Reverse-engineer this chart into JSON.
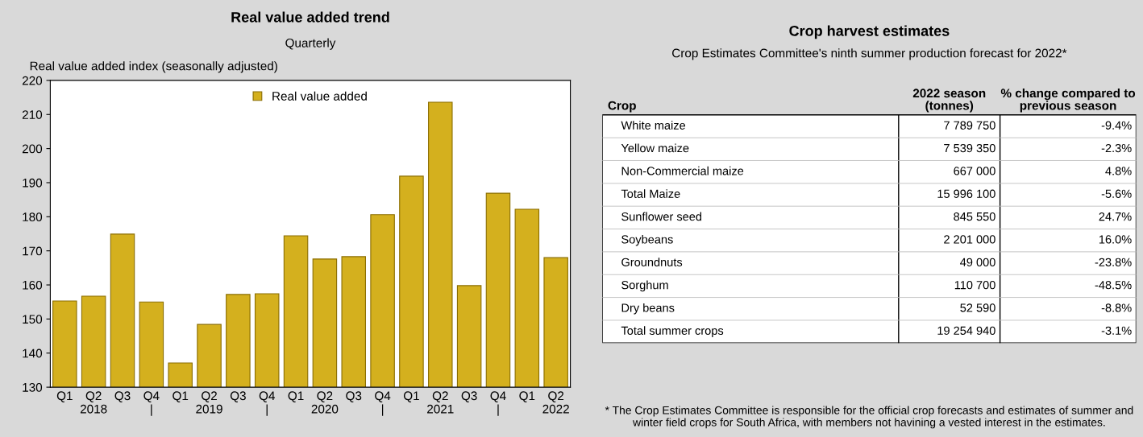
{
  "chart_data": [
    {
      "type": "bar",
      "title": "Real value added trend",
      "subtitle": "Quarterly",
      "ylabel": "Real value added index (seasonally adjusted)",
      "categories": [
        "Q1",
        "Q2\n2018",
        "Q3",
        "Q4\n|",
        "Q1",
        "Q2\n2019",
        "Q3",
        "Q4\n|",
        "Q1",
        "Q2\n2020",
        "Q3",
        "Q4\n|",
        "Q1",
        "Q2\n2021",
        "Q3",
        "Q4\n|",
        "Q1",
        "Q2\n2022"
      ],
      "series": [
        {
          "name": "Real value added",
          "color": "#d4b01e",
          "values": [
            155.3,
            156.7,
            174.9,
            155.0,
            137.1,
            148.4,
            157.2,
            157.4,
            174.4,
            167.6,
            168.3,
            180.6,
            191.9,
            213.6,
            159.8,
            186.9,
            182.2,
            168.0
          ]
        }
      ],
      "ylim": [
        130,
        220
      ],
      "yticks": [
        130,
        140,
        150,
        160,
        170,
        180,
        190,
        200,
        210,
        220
      ],
      "legend": "top",
      "grid": false
    },
    {
      "type": "other",
      "title": "Crop harvest estimates",
      "subtitle": "Crop Estimates Committee's ninth summer production forecast for 2022*",
      "xlabel": "Crop",
      "categories": [
        "White maize",
        "Yellow maize",
        "Non-Commercial maize",
        "Total Maize",
        "Sunflower seed",
        "Soybeans",
        "Groundnuts",
        "Sorghum",
        "Dry beans",
        "Total summer crops"
      ],
      "series": [
        {
          "name": "2022 season\n(tonnes)",
          "values": [
            7789750,
            7539350,
            667000,
            15996100,
            845550,
            2201000,
            49000,
            110700,
            52590,
            19254940
          ]
        },
        {
          "name": "% change compared to\nprevious season",
          "values": [
            -9.4,
            -2.3,
            4.8,
            -5.6,
            24.7,
            16.0,
            -23.8,
            -48.5,
            -8.8,
            -3.1
          ],
          "value_labels": [
            "-9.4%",
            "-2.3%",
            "4.8%",
            "-5.6%",
            "24.7%",
            "16.0%",
            "-23.8%",
            "-48.5%",
            "-8.8%",
            "-3.1%"
          ]
        }
      ],
      "data_labels": true,
      "annotations": [
        "* The Crop Estimates Committee is responsible for the official crop forecasts and estimates of summer and winter field crops for South Africa, with members not havining a vested interest in the estimates."
      ]
    }
  ]
}
